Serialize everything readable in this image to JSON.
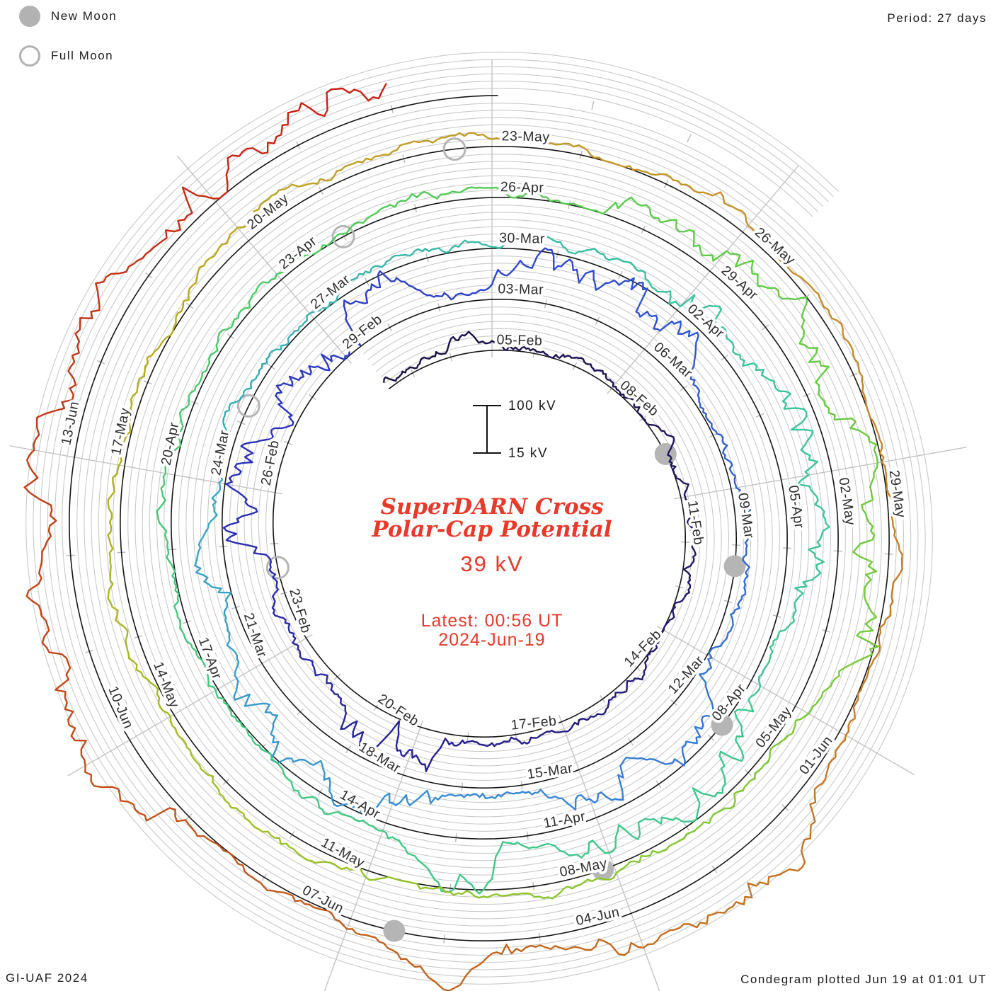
{
  "legend": {
    "new_moon": "New Moon",
    "full_moon": "Full Moon"
  },
  "header": {
    "period": "Period: 27 days"
  },
  "footer": {
    "credit": "GI-UAF 2024",
    "plotted": "Condegram plotted Jun 19 at 01:01 UT"
  },
  "center": {
    "title_line1": "SuperDARN Cross",
    "title_line2": "Polar-Cap Potential",
    "current_value": "39 kV",
    "latest_time": "Latest: 00:56 UT",
    "latest_date": "2024-Jun-19"
  },
  "scale_bar": {
    "max_label": "100 kV",
    "min_label": "15 kV"
  },
  "chart_data": {
    "type": "line",
    "variant": "condegram (spiral polar time-series)",
    "title": "SuperDARN Cross Polar-Cap Potential",
    "units": "kV",
    "period_days": 27,
    "value_range_kv": [
      15,
      100
    ],
    "latest_value_kv": 39,
    "latest_timestamp": "2024-Jun-19 00:56 UT",
    "plotted_timestamp": "Jun 19 at 01:01 UT",
    "ring_start_dates": [
      "05-Feb",
      "03-Mar",
      "30-Mar",
      "26-Apr",
      "23-May"
    ],
    "date_labels": [
      {
        "text": "05-Feb",
        "day": 0
      },
      {
        "text": "08-Feb",
        "day": 3
      },
      {
        "text": "11-Feb",
        "day": 6
      },
      {
        "text": "14-Feb",
        "day": 9
      },
      {
        "text": "17-Feb",
        "day": 12
      },
      {
        "text": "20-Feb",
        "day": 15
      },
      {
        "text": "23-Feb",
        "day": 18
      },
      {
        "text": "26-Feb",
        "day": 21
      },
      {
        "text": "29-Feb",
        "day": 24
      },
      {
        "text": "03-Mar",
        "day": 27
      },
      {
        "text": "06-Mar",
        "day": 30
      },
      {
        "text": "09-Mar",
        "day": 33
      },
      {
        "text": "12-Mar",
        "day": 36
      },
      {
        "text": "15-Mar",
        "day": 39
      },
      {
        "text": "18-Mar",
        "day": 42
      },
      {
        "text": "21-Mar",
        "day": 45
      },
      {
        "text": "24-Mar",
        "day": 48
      },
      {
        "text": "27-Mar",
        "day": 51
      },
      {
        "text": "30-Mar",
        "day": 54
      },
      {
        "text": "02-Apr",
        "day": 57
      },
      {
        "text": "05-Apr",
        "day": 60
      },
      {
        "text": "08-Apr",
        "day": 63
      },
      {
        "text": "11-Apr",
        "day": 66
      },
      {
        "text": "14-Apr",
        "day": 69
      },
      {
        "text": "17-Apr",
        "day": 72
      },
      {
        "text": "20-Apr",
        "day": 75
      },
      {
        "text": "23-Apr",
        "day": 78
      },
      {
        "text": "26-Apr",
        "day": 81
      },
      {
        "text": "29-Apr",
        "day": 84
      },
      {
        "text": "02-May",
        "day": 87
      },
      {
        "text": "05-May",
        "day": 90
      },
      {
        "text": "08-May",
        "day": 93
      },
      {
        "text": "11-May",
        "day": 96
      },
      {
        "text": "14-May",
        "day": 99
      },
      {
        "text": "17-May",
        "day": 102
      },
      {
        "text": "20-May",
        "day": 105
      },
      {
        "text": "23-May",
        "day": 108
      },
      {
        "text": "26-May",
        "day": 111
      },
      {
        "text": "29-May",
        "day": 114
      },
      {
        "text": "01-Jun",
        "day": 117
      },
      {
        "text": "04-Jun",
        "day": 120
      },
      {
        "text": "07-Jun",
        "day": 123
      },
      {
        "text": "10-Jun",
        "day": 126
      },
      {
        "text": "13-Jun",
        "day": 129
      }
    ],
    "moon_events": {
      "new_moon_dates": [
        "09-Feb",
        "10-Mar",
        "08-Apr",
        "08-May",
        "06-Jun"
      ],
      "new_moon_days": [
        4.96,
        34.37,
        63.76,
        93.14,
        122.53
      ],
      "full_moon_dates": [
        "24-Feb",
        "25-Mar",
        "23-Apr",
        "23-May"
      ],
      "full_moon_days": [
        19.52,
        49.29,
        78.99,
        107.58
      ]
    },
    "color_stops": [
      [
        -3,
        "#180f42"
      ],
      [
        7,
        "#201865"
      ],
      [
        15,
        "#262195"
      ],
      [
        21,
        "#2a2fb8"
      ],
      [
        27,
        "#2d46cc"
      ],
      [
        34,
        "#3168d4"
      ],
      [
        40,
        "#3787d6"
      ],
      [
        46,
        "#38a0ca"
      ],
      [
        52,
        "#39b6ae"
      ],
      [
        58,
        "#3bc49a"
      ],
      [
        66,
        "#3fc88a"
      ],
      [
        74,
        "#45c878"
      ],
      [
        80,
        "#52cb58"
      ],
      [
        86,
        "#66cb40"
      ],
      [
        92,
        "#82c930"
      ],
      [
        98,
        "#a0c024"
      ],
      [
        104,
        "#bba81c"
      ],
      [
        109,
        "#c49726"
      ],
      [
        114,
        "#c8832a"
      ],
      [
        119,
        "#c67120"
      ],
      [
        124,
        "#c25a1a"
      ],
      [
        129,
        "#c13c16"
      ],
      [
        133,
        "#c92112"
      ],
      [
        135,
        "#cc1c10"
      ]
    ],
    "series_note": "2-min cross polar-cap potential, 15-100 kV per ring, one 27-day rotation per ring; individual noisy values not legible in source and are regenerated stochastically"
  }
}
